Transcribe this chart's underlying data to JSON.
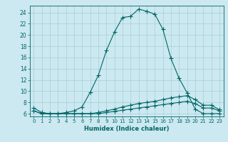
{
  "xlabel": "Humidex (Indice chaleur)",
  "bg_color": "#cce8f0",
  "line_color": "#006666",
  "grid_color": "#99cccc",
  "xlim": [
    -0.5,
    23.5
  ],
  "ylim": [
    5.5,
    25.2
  ],
  "xticks": [
    0,
    1,
    2,
    3,
    4,
    5,
    6,
    7,
    8,
    9,
    10,
    11,
    12,
    13,
    14,
    15,
    16,
    17,
    18,
    19,
    20,
    21,
    22,
    23
  ],
  "yticks": [
    6,
    8,
    10,
    12,
    14,
    16,
    18,
    20,
    22,
    24
  ],
  "line1_x": [
    0,
    1,
    2,
    3,
    4,
    5,
    6,
    7,
    8,
    9,
    10,
    11,
    12,
    13,
    14,
    15,
    16,
    17,
    18,
    19,
    20,
    21,
    22,
    23
  ],
  "line1_y": [
    7.0,
    6.2,
    6.0,
    6.0,
    6.2,
    6.5,
    7.2,
    9.8,
    12.8,
    17.2,
    20.5,
    23.1,
    23.3,
    24.6,
    24.2,
    23.7,
    21.0,
    15.8,
    12.3,
    9.7,
    6.8,
    6.0,
    6.0,
    6.0
  ],
  "line2_x": [
    0,
    1,
    2,
    3,
    4,
    5,
    6,
    7,
    8,
    9,
    10,
    11,
    12,
    13,
    14,
    15,
    16,
    17,
    18,
    19,
    20,
    21,
    22,
    23
  ],
  "line2_y": [
    6.5,
    6.0,
    6.0,
    6.0,
    6.0,
    6.0,
    6.0,
    6.0,
    6.2,
    6.5,
    6.8,
    7.2,
    7.5,
    7.8,
    8.0,
    8.2,
    8.5,
    8.8,
    9.0,
    9.2,
    8.5,
    7.5,
    7.5,
    6.7
  ],
  "line3_x": [
    0,
    1,
    2,
    3,
    4,
    5,
    6,
    7,
    8,
    9,
    10,
    11,
    12,
    13,
    14,
    15,
    16,
    17,
    18,
    19,
    20,
    21,
    22,
    23
  ],
  "line3_y": [
    6.5,
    6.0,
    6.0,
    6.0,
    6.0,
    6.0,
    6.0,
    6.0,
    6.0,
    6.2,
    6.4,
    6.6,
    6.8,
    7.0,
    7.2,
    7.4,
    7.6,
    7.8,
    8.0,
    8.2,
    7.8,
    7.0,
    7.0,
    6.5
  ]
}
